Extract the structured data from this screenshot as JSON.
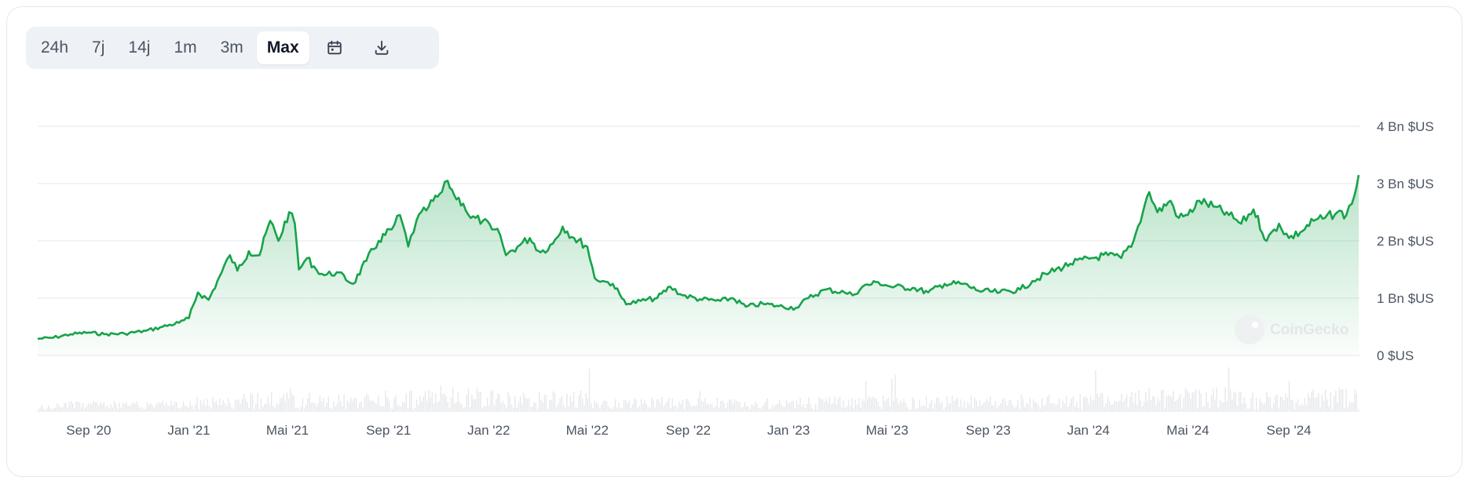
{
  "toolbar": {
    "ranges": [
      "24h",
      "7j",
      "14j",
      "1m",
      "3m",
      "Max"
    ],
    "active": "Max",
    "calendar_icon": "calendar-icon",
    "download_icon": "download-icon"
  },
  "watermark": {
    "text": "CoinGecko",
    "icon": "coingecko-logo"
  },
  "colors": {
    "line": "#16a34a",
    "fill_top": "#16a34a",
    "volume": "#d1d5db",
    "grid": "#e5e7eb"
  },
  "chart_data": {
    "type": "area",
    "yunit": "$US",
    "ylim": [
      0,
      4000000000
    ],
    "yticks": [
      {
        "value": 0,
        "label": "0 $US"
      },
      {
        "value": 1000000000,
        "label": "1 Bn $US"
      },
      {
        "value": 2000000000,
        "label": "2 Bn $US"
      },
      {
        "value": 3000000000,
        "label": "3 Bn $US"
      },
      {
        "value": 4000000000,
        "label": "4 Bn $US"
      }
    ],
    "xlim": [
      "2020-07-01",
      "2024-11-25"
    ],
    "xticks": [
      {
        "date": "2020-09-01",
        "label": "Sep '20"
      },
      {
        "date": "2021-01-01",
        "label": "Jan '21"
      },
      {
        "date": "2021-05-01",
        "label": "Mai '21"
      },
      {
        "date": "2021-09-01",
        "label": "Sep '21"
      },
      {
        "date": "2022-01-01",
        "label": "Jan '22"
      },
      {
        "date": "2022-05-01",
        "label": "Mai '22"
      },
      {
        "date": "2022-09-01",
        "label": "Sep '22"
      },
      {
        "date": "2023-01-01",
        "label": "Jan '23"
      },
      {
        "date": "2023-05-01",
        "label": "Mai '23"
      },
      {
        "date": "2023-09-01",
        "label": "Sep '23"
      },
      {
        "date": "2024-01-01",
        "label": "Jan '24"
      },
      {
        "date": "2024-05-01",
        "label": "Mai '24"
      },
      {
        "date": "2024-09-01",
        "label": "Sep '24"
      }
    ],
    "grid": true,
    "series": [
      {
        "points": [
          [
            "2020-07-01",
            290000000
          ],
          [
            "2020-07-20",
            310000000
          ],
          [
            "2020-08-10",
            370000000
          ],
          [
            "2020-09-01",
            400000000
          ],
          [
            "2020-09-20",
            370000000
          ],
          [
            "2020-10-15",
            380000000
          ],
          [
            "2020-11-10",
            430000000
          ],
          [
            "2020-11-30",
            500000000
          ],
          [
            "2020-12-20",
            570000000
          ],
          [
            "2021-01-01",
            650000000
          ],
          [
            "2021-01-12",
            1100000000
          ],
          [
            "2021-01-25",
            970000000
          ],
          [
            "2021-02-10",
            1450000000
          ],
          [
            "2021-02-20",
            1750000000
          ],
          [
            "2021-03-01",
            1480000000
          ],
          [
            "2021-03-15",
            1820000000
          ],
          [
            "2021-03-28",
            1750000000
          ],
          [
            "2021-04-10",
            2350000000
          ],
          [
            "2021-04-20",
            2000000000
          ],
          [
            "2021-05-03",
            2500000000
          ],
          [
            "2021-05-10",
            2300000000
          ],
          [
            "2021-05-15",
            1500000000
          ],
          [
            "2021-05-25",
            1700000000
          ],
          [
            "2021-06-05",
            1500000000
          ],
          [
            "2021-06-15",
            1400000000
          ],
          [
            "2021-06-30",
            1450000000
          ],
          [
            "2021-07-20",
            1250000000
          ],
          [
            "2021-08-05",
            1650000000
          ],
          [
            "2021-08-20",
            2000000000
          ],
          [
            "2021-09-05",
            2200000000
          ],
          [
            "2021-09-15",
            2450000000
          ],
          [
            "2021-09-25",
            1900000000
          ],
          [
            "2021-10-05",
            2350000000
          ],
          [
            "2021-10-20",
            2600000000
          ],
          [
            "2021-11-05",
            2850000000
          ],
          [
            "2021-11-12",
            3050000000
          ],
          [
            "2021-11-20",
            2800000000
          ],
          [
            "2021-12-01",
            2650000000
          ],
          [
            "2021-12-10",
            2400000000
          ],
          [
            "2021-12-25",
            2350000000
          ],
          [
            "2022-01-05",
            2200000000
          ],
          [
            "2022-01-15",
            2100000000
          ],
          [
            "2022-01-22",
            1750000000
          ],
          [
            "2022-02-05",
            1900000000
          ],
          [
            "2022-02-20",
            2050000000
          ],
          [
            "2022-03-05",
            1800000000
          ],
          [
            "2022-03-20",
            1950000000
          ],
          [
            "2022-04-01",
            2250000000
          ],
          [
            "2022-04-15",
            2050000000
          ],
          [
            "2022-05-01",
            1900000000
          ],
          [
            "2022-05-10",
            1350000000
          ],
          [
            "2022-05-20",
            1300000000
          ],
          [
            "2022-06-01",
            1250000000
          ],
          [
            "2022-06-12",
            1000000000
          ],
          [
            "2022-06-20",
            900000000
          ],
          [
            "2022-07-05",
            950000000
          ],
          [
            "2022-07-25",
            1000000000
          ],
          [
            "2022-08-10",
            1200000000
          ],
          [
            "2022-08-25",
            1050000000
          ],
          [
            "2022-09-15",
            980000000
          ],
          [
            "2022-10-10",
            950000000
          ],
          [
            "2022-10-25",
            1000000000
          ],
          [
            "2022-11-10",
            850000000
          ],
          [
            "2022-12-01",
            900000000
          ],
          [
            "2022-12-20",
            860000000
          ],
          [
            "2023-01-10",
            830000000
          ],
          [
            "2023-01-25",
            1000000000
          ],
          [
            "2023-02-15",
            1150000000
          ],
          [
            "2023-03-10",
            1100000000
          ],
          [
            "2023-03-20",
            1050000000
          ],
          [
            "2023-04-01",
            1200000000
          ],
          [
            "2023-04-20",
            1280000000
          ],
          [
            "2023-05-05",
            1200000000
          ],
          [
            "2023-06-01",
            1180000000
          ],
          [
            "2023-06-20",
            1100000000
          ],
          [
            "2023-07-10",
            1250000000
          ],
          [
            "2023-08-01",
            1250000000
          ],
          [
            "2023-08-20",
            1130000000
          ],
          [
            "2023-09-15",
            1100000000
          ],
          [
            "2023-10-10",
            1150000000
          ],
          [
            "2023-10-25",
            1300000000
          ],
          [
            "2023-11-15",
            1450000000
          ],
          [
            "2023-12-10",
            1600000000
          ],
          [
            "2024-01-05",
            1700000000
          ],
          [
            "2024-01-25",
            1750000000
          ],
          [
            "2024-02-10",
            1700000000
          ],
          [
            "2024-02-25",
            2000000000
          ],
          [
            "2024-03-10",
            2650000000
          ],
          [
            "2024-03-15",
            2850000000
          ],
          [
            "2024-03-25",
            2500000000
          ],
          [
            "2024-04-10",
            2700000000
          ],
          [
            "2024-04-20",
            2400000000
          ],
          [
            "2024-05-01",
            2450000000
          ],
          [
            "2024-05-15",
            2700000000
          ],
          [
            "2024-06-01",
            2600000000
          ],
          [
            "2024-06-20",
            2450000000
          ],
          [
            "2024-07-05",
            2300000000
          ],
          [
            "2024-07-20",
            2550000000
          ],
          [
            "2024-08-05",
            2000000000
          ],
          [
            "2024-08-20",
            2300000000
          ],
          [
            "2024-09-01",
            2050000000
          ],
          [
            "2024-09-15",
            2150000000
          ],
          [
            "2024-10-01",
            2350000000
          ],
          [
            "2024-10-15",
            2400000000
          ],
          [
            "2024-10-30",
            2500000000
          ],
          [
            "2024-11-10",
            2450000000
          ],
          [
            "2024-11-20",
            2800000000
          ],
          [
            "2024-11-25",
            3150000000
          ]
        ]
      }
    ]
  }
}
